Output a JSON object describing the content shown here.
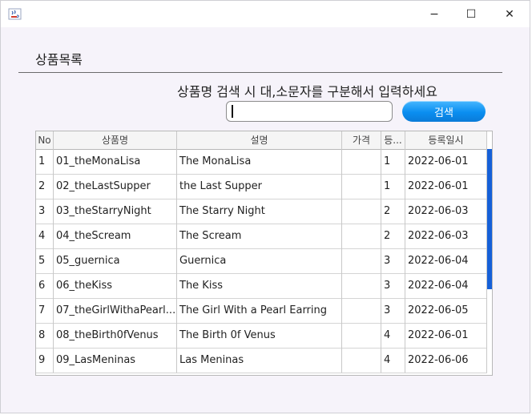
{
  "window": {
    "minimize_glyph": "−",
    "maximize_glyph": "☐",
    "close_glyph": "✕",
    "app_icon": "java-cup-icon"
  },
  "panel": {
    "title": "상품목록",
    "hint": "상품명 검색 시 대,소문자를 구분해서 입력하세요"
  },
  "search": {
    "value": "",
    "button_label": "검색"
  },
  "colors": {
    "accent": "#0a8ef0",
    "scroll_thumb": "#1560d8"
  },
  "table": {
    "headers": [
      "No",
      "상품명",
      "설명",
      "가격",
      "등...",
      "등록일시"
    ],
    "rows": [
      [
        "1",
        "01_theMonaLisa",
        "The MonaLisa",
        "",
        "1",
        "2022-06-01"
      ],
      [
        "2",
        "02_theLastSupper",
        "the Last Supper",
        "",
        "1",
        "2022-06-01"
      ],
      [
        "3",
        "03_theStarryNight",
        "The Starry Night",
        "",
        "2",
        "2022-06-03"
      ],
      [
        "4",
        "04_theScream",
        "The Scream",
        "",
        "2",
        "2022-06-03"
      ],
      [
        "5",
        "05_guernica",
        "Guernica",
        "",
        "3",
        "2022-06-04"
      ],
      [
        "6",
        "06_theKiss",
        "The Kiss",
        "",
        "3",
        "2022-06-04"
      ],
      [
        "7",
        "07_theGirlWithaPearl...",
        "The Girl With a Pearl Earring",
        "",
        "3",
        "2022-06-05"
      ],
      [
        "8",
        "08_theBirth0fVenus",
        "The Birth 0f Venus",
        "",
        "4",
        "2022-06-01"
      ],
      [
        "9",
        "09_LasMeninas",
        "Las Meninas",
        "",
        "4",
        "2022-06-06"
      ]
    ]
  },
  "scrollbar": {
    "thumb_fraction": 0.62
  }
}
